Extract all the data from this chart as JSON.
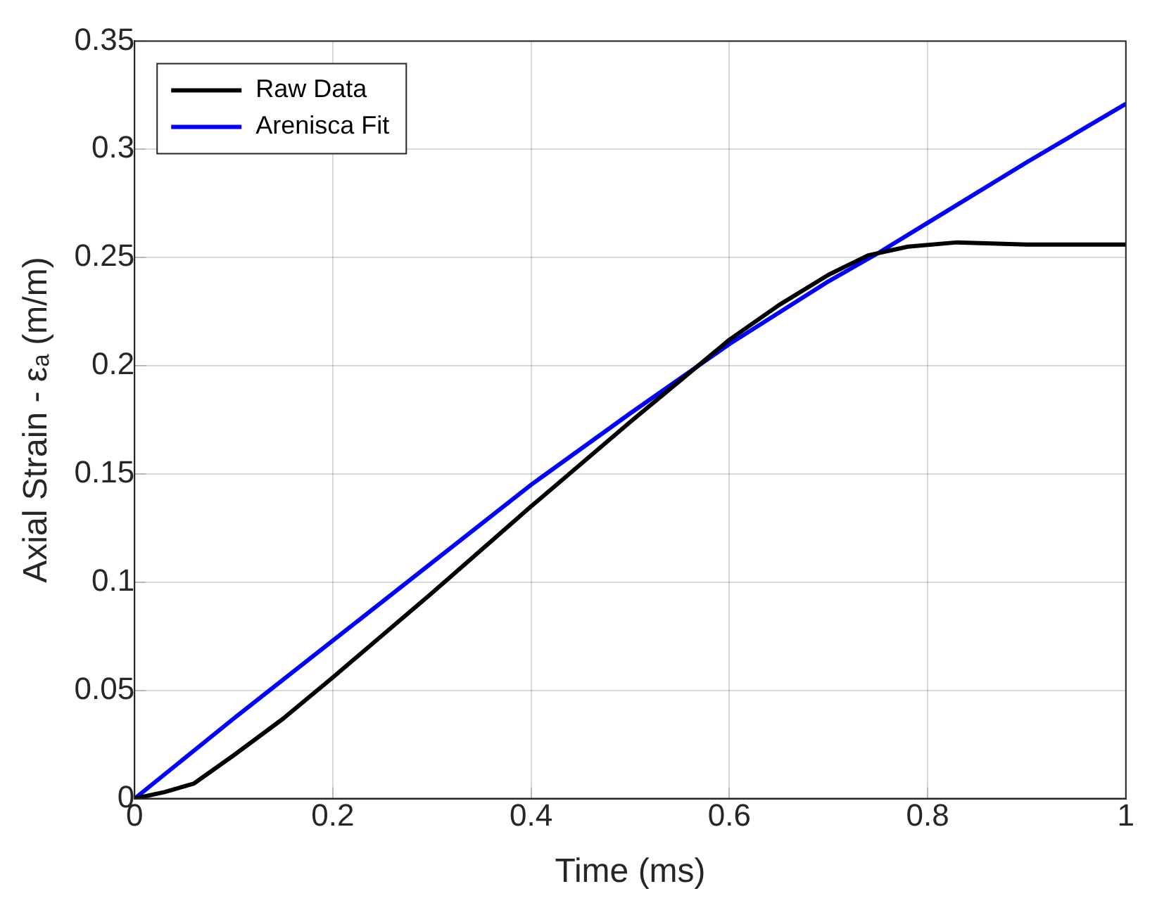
{
  "chart_data": {
    "type": "line",
    "xlabel": "Time (ms)",
    "ylabel": "Axial Strain - εₐ (m/m)",
    "xlim": [
      0,
      1
    ],
    "xticks": [
      0,
      0.2,
      0.4,
      0.6,
      0.8,
      1
    ],
    "ylim": [
      0,
      0.35
    ],
    "yticks": [
      0,
      0.05,
      0.1,
      0.15,
      0.2,
      0.25,
      0.3,
      0.35
    ],
    "grid": true,
    "legend": "top left",
    "line_style": "solid",
    "marker": "none",
    "series": [
      {
        "name": "Raw Data",
        "color": "#000000",
        "x": [
          0,
          0.03,
          0.06,
          0.1,
          0.15,
          0.2,
          0.3,
          0.4,
          0.5,
          0.55,
          0.6,
          0.65,
          0.7,
          0.74,
          0.78,
          0.83,
          0.9,
          1
        ],
        "values": [
          0,
          0.003,
          0.007,
          0.02,
          0.037,
          0.056,
          0.095,
          0.135,
          0.174,
          0.193,
          0.212,
          0.228,
          0.242,
          0.251,
          0.255,
          0.257,
          0.256,
          0.256
        ]
      },
      {
        "name": "Arenisca Fit",
        "color": "#0000ff",
        "x": [
          0,
          0.1,
          0.2,
          0.3,
          0.4,
          0.5,
          0.6,
          0.7,
          0.75,
          0.8,
          0.9,
          1
        ],
        "values": [
          0,
          0.037,
          0.073,
          0.109,
          0.145,
          0.178,
          0.21,
          0.239,
          0.252,
          0.266,
          0.294,
          0.321
        ]
      }
    ]
  }
}
